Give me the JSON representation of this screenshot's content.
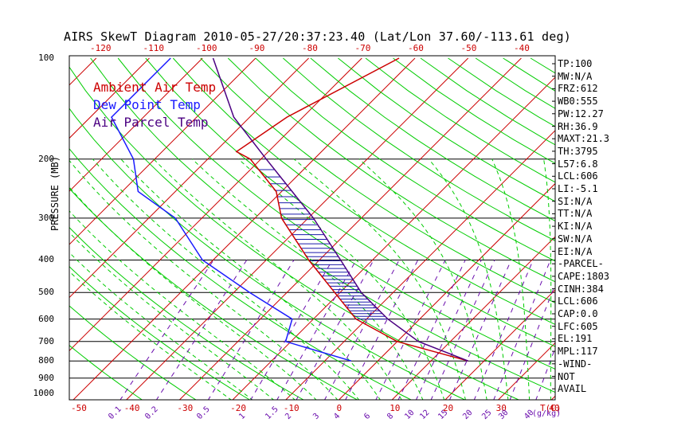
{
  "title": "AIRS SkewT Diagram 2010-05-27/20:37:23.40 (Lat/Lon 37.60/-113.61 deg)",
  "y_axis_label": "PRESSURE (MB)",
  "legend": [
    {
      "label": "Ambient Air Temp",
      "color": "#cc0000"
    },
    {
      "label": "Dew Point Temp",
      "color": "#1a1aff"
    },
    {
      "label": "Air Parcel Temp",
      "color": "#4b0082"
    }
  ],
  "side_panel": [
    "TP:100",
    "MW:N/A",
    "FRZ:612",
    "WB0:555",
    "PW:12.27",
    "RH:36.9",
    "MAXT:21.3",
    "TH:3795",
    "L57:6.8",
    "LCL:606",
    "LI:-5.1",
    "SI:N/A",
    "TT:N/A",
    "KI:N/A",
    "SW:N/A",
    "EI:N/A",
    "-PARCEL-",
    "CAPE:1803",
    "CINH:384",
    "LCL:606",
    "CAP:0.0",
    "LFC:605",
    "EL:191",
    "MPL:117",
    "-WIND-",
    "NOT",
    "AVAIL"
  ],
  "pressure_ticks": [
    "100",
    "200",
    "300",
    "400",
    "500",
    "600",
    "700",
    "800",
    "900",
    "1000"
  ],
  "top_temp_ticks": [
    "-120",
    "-110",
    "-100",
    "-90",
    "-80",
    "-70",
    "-60",
    "-50",
    "-40"
  ],
  "bottom_temp_ticks": [
    "-50",
    "-40",
    "-30",
    "-20",
    "-10",
    "0",
    "10",
    "20",
    "30",
    "40"
  ],
  "bottom_axis_label": "T(C)",
  "mixing_ratio_ticks": [
    "0.1",
    "0.2",
    "0.5",
    "1",
    "1.5",
    "2",
    "3",
    "4",
    "6",
    "8",
    "10",
    "12",
    "15",
    "20",
    "25",
    "30",
    "40"
  ],
  "mixing_ratio_label": "(g/kg)",
  "colors": {
    "isotherm": "#cc0000",
    "dry_adiabat": "#00cc00",
    "moist_adiabat": "#00cc00",
    "mixing_ratio": "#6a0dad",
    "isobar": "#000000",
    "hatch": "#1a1aaa"
  },
  "chart_data": {
    "type": "line",
    "title": "AIRS SkewT Diagram 2010-05-27/20:37:23.40 (Lat/Lon 37.60/-113.61 deg)",
    "xlabel": "T(C)",
    "ylabel": "PRESSURE (MB)",
    "y_scale": "log",
    "ylim": [
      1050,
      100
    ],
    "xlim_bottom": [
      -50,
      40
    ],
    "series": [
      {
        "name": "Ambient Air Temp",
        "color": "#cc0000",
        "points": [
          [
            100,
            -53
          ],
          [
            150,
            -63
          ],
          [
            190,
            -66
          ],
          [
            200,
            -62
          ],
          [
            250,
            -51
          ],
          [
            300,
            -45
          ],
          [
            400,
            -32
          ],
          [
            500,
            -21
          ],
          [
            600,
            -12
          ],
          [
            700,
            0
          ],
          [
            800,
            17
          ]
        ]
      },
      {
        "name": "Dew Point Temp",
        "color": "#1a1aff",
        "points": [
          [
            100,
            -96
          ],
          [
            150,
            -96
          ],
          [
            200,
            -84
          ],
          [
            250,
            -77
          ],
          [
            300,
            -65
          ],
          [
            400,
            -52
          ],
          [
            500,
            -37
          ],
          [
            600,
            -24
          ],
          [
            700,
            -21
          ],
          [
            800,
            -5
          ]
        ]
      },
      {
        "name": "Air Parcel Temp",
        "color": "#4b0082",
        "points": [
          [
            100,
            -88
          ],
          [
            150,
            -73
          ],
          [
            200,
            -59
          ],
          [
            250,
            -48
          ],
          [
            300,
            -39
          ],
          [
            400,
            -26
          ],
          [
            500,
            -16
          ],
          [
            600,
            -6
          ],
          [
            700,
            4
          ],
          [
            800,
            17
          ]
        ]
      }
    ]
  }
}
